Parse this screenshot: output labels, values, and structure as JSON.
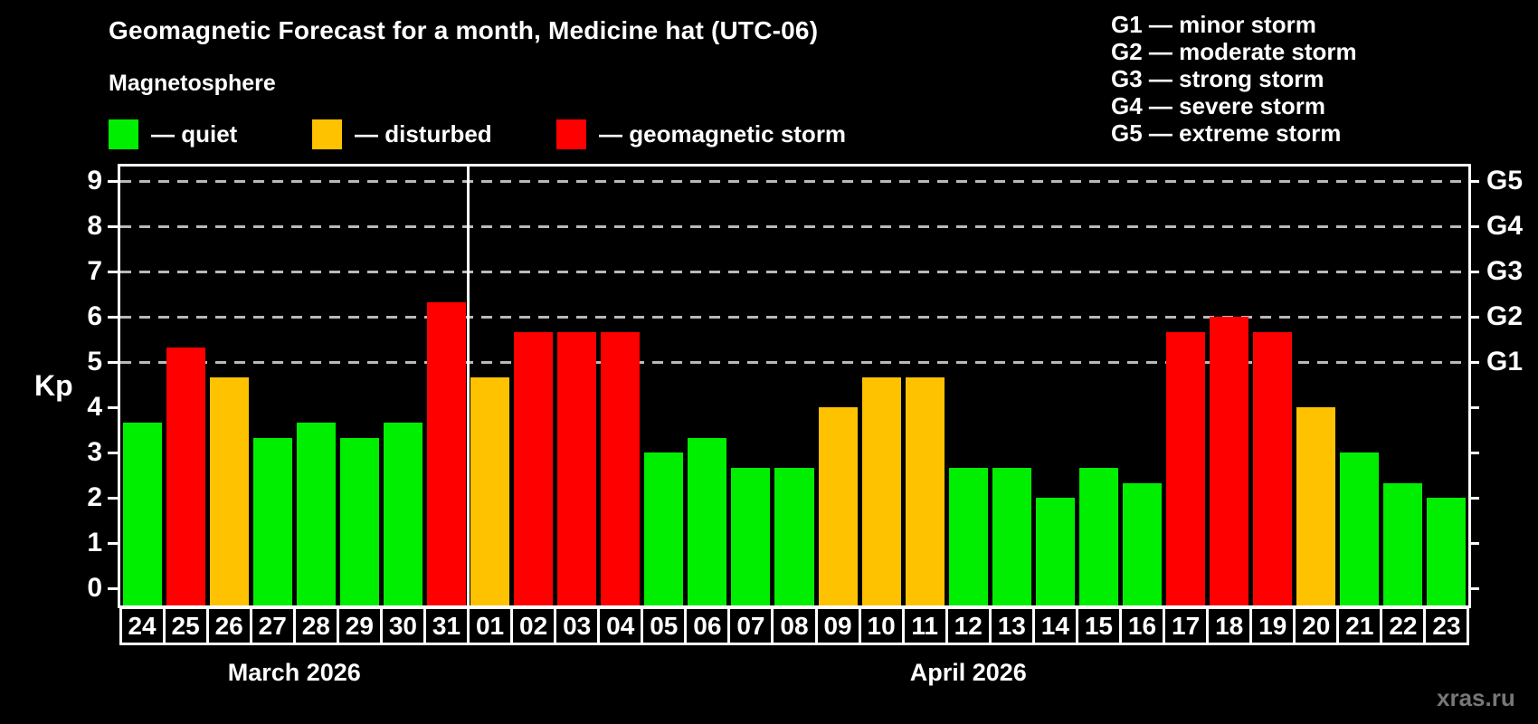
{
  "header": {
    "title": "Geomagnetic Forecast for a month, Medicine hat (UTC-06)",
    "subtitle": "Magnetosphere"
  },
  "legend": {
    "items": [
      {
        "name": "quiet",
        "label": "— quiet",
        "color": "#00ee00"
      },
      {
        "name": "disturbed",
        "label": "— disturbed",
        "color": "#ffc200"
      },
      {
        "name": "storm",
        "label": "— geomagnetic storm",
        "color": "#ff0000"
      }
    ]
  },
  "g_legend": {
    "items": [
      "G1 — minor storm",
      "G2 — moderate storm",
      "G3 — strong storm",
      "G4 — severe storm",
      "G5 — extreme storm"
    ]
  },
  "axes": {
    "y_label": "Kp",
    "y_ticks": [
      0,
      1,
      2,
      3,
      4,
      5,
      6,
      7,
      8,
      9
    ],
    "right_labels": [
      {
        "text": "G1",
        "kp": 5
      },
      {
        "text": "G2",
        "kp": 6
      },
      {
        "text": "G3",
        "kp": 7
      },
      {
        "text": "G4",
        "kp": 8
      },
      {
        "text": "G5",
        "kp": 9
      }
    ],
    "grid_kp": [
      5,
      6,
      7,
      8,
      9
    ]
  },
  "footer": {
    "watermark": "xras.ru"
  },
  "colors": {
    "background": "#000000",
    "axis": "#ffffff",
    "grid": "#b9b9b9",
    "text": "#ffffff",
    "quiet": "#00ee00",
    "disturbed": "#ffc200",
    "storm": "#ff0000",
    "watermark": "#777777"
  },
  "chart_data": {
    "type": "bar",
    "title": "Geomagnetic Forecast for a month, Medicine hat (UTC-06)",
    "subtitle": "Magnetosphere",
    "xlabel": "",
    "ylabel": "Kp",
    "ylim": [
      0,
      9
    ],
    "grid": "dashed horizontal lines at Kp 5,6,7,8,9 (G1–G5 levels)",
    "legend_position": "top-left",
    "months": [
      {
        "label": "March 2026",
        "start_index": 0,
        "num_days": 8
      },
      {
        "label": "April 2026",
        "start_index": 8,
        "num_days": 23
      }
    ],
    "categories": [
      "24",
      "25",
      "26",
      "27",
      "28",
      "29",
      "30",
      "31",
      "01",
      "02",
      "03",
      "04",
      "05",
      "06",
      "07",
      "08",
      "09",
      "10",
      "11",
      "12",
      "13",
      "14",
      "15",
      "16",
      "17",
      "18",
      "19",
      "20",
      "21",
      "22",
      "23"
    ],
    "values": [
      3.67,
      5.33,
      4.67,
      3.33,
      3.67,
      3.33,
      3.67,
      6.33,
      4.67,
      5.67,
      5.67,
      5.67,
      3.0,
      3.33,
      2.67,
      2.67,
      4.0,
      4.67,
      4.67,
      2.67,
      2.67,
      2.0,
      2.67,
      2.33,
      5.67,
      6.0,
      5.67,
      4.0,
      3.0,
      2.33,
      2.0
    ],
    "states": [
      "quiet",
      "storm",
      "disturbed",
      "quiet",
      "quiet",
      "quiet",
      "quiet",
      "storm",
      "disturbed",
      "storm",
      "storm",
      "storm",
      "quiet",
      "quiet",
      "quiet",
      "quiet",
      "disturbed",
      "disturbed",
      "disturbed",
      "quiet",
      "quiet",
      "quiet",
      "quiet",
      "quiet",
      "storm",
      "storm",
      "storm",
      "disturbed",
      "quiet",
      "quiet",
      "quiet"
    ]
  }
}
